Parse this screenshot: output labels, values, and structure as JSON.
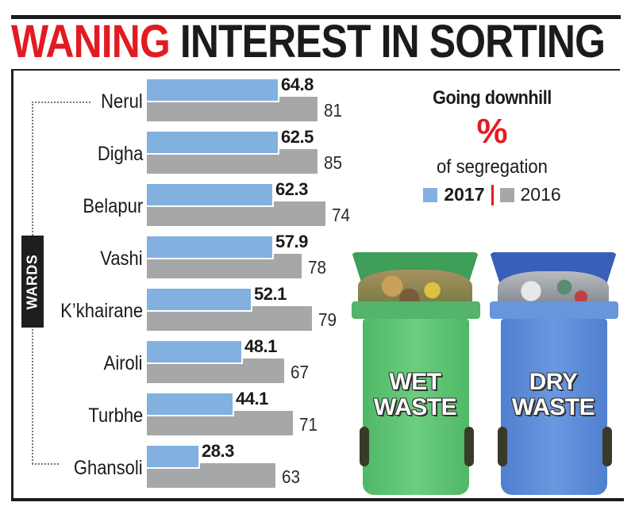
{
  "headline": {
    "highlight": "WANING",
    "rest": " INTEREST IN SORTING"
  },
  "axis_label": "WARDS",
  "legend": {
    "title": "Going downhill",
    "unit": "%",
    "subtitle": "of segregation",
    "series": [
      {
        "label": "2017",
        "color": "#82b0df"
      },
      {
        "label": "2016",
        "color": "#a6a7a9"
      }
    ],
    "separator_color": "#e21b23"
  },
  "colors": {
    "accent_red": "#e21b23",
    "bar_2017": "#82b0df",
    "bar_2016": "#a6a7a9",
    "wet_bin": "#5cc173",
    "dry_bin": "#5b8bd6"
  },
  "bins": [
    {
      "line1": "WET",
      "line2": "WASTE"
    },
    {
      "line1": "DRY",
      "line2": "WASTE"
    }
  ],
  "rows": [
    {
      "ward": "Nerul",
      "v2017": "64.8",
      "v2016": "81",
      "w2017": 167,
      "w2016": 215
    },
    {
      "ward": "Digha",
      "v2017": "62.5",
      "v2016": "85",
      "w2017": 167,
      "w2016": 215
    },
    {
      "ward": "Belapur",
      "v2017": "62.3",
      "v2016": "74",
      "w2017": 160,
      "w2016": 225
    },
    {
      "ward": "Vashi",
      "v2017": "57.9",
      "v2016": "78",
      "w2017": 160,
      "w2016": 195
    },
    {
      "ward": "K’khairane",
      "v2017": "52.1",
      "v2016": "79",
      "w2017": 133,
      "w2016": 208
    },
    {
      "ward": "Airoli",
      "v2017": "48.1",
      "v2016": "67",
      "w2017": 121,
      "w2016": 173
    },
    {
      "ward": "Turbhe",
      "v2017": "44.1",
      "v2016": "71",
      "w2017": 110,
      "w2016": 184
    },
    {
      "ward": "Ghansoli",
      "v2017": "28.3",
      "v2016": "63",
      "w2017": 67,
      "w2016": 162
    }
  ],
  "chart_data": {
    "type": "bar",
    "orientation": "horizontal",
    "title": "WANING INTEREST IN SORTING",
    "subtitle": "Going downhill — % of segregation",
    "xlabel": "% of segregation",
    "ylabel": "WARDS",
    "categories": [
      "Nerul",
      "Digha",
      "Belapur",
      "Vashi",
      "K’khairane",
      "Airoli",
      "Turbhe",
      "Ghansoli"
    ],
    "series": [
      {
        "name": "2017",
        "color": "#82b0df",
        "values": [
          64.8,
          62.5,
          62.3,
          57.9,
          52.1,
          48.1,
          44.1,
          28.3
        ]
      },
      {
        "name": "2016",
        "color": "#a6a7a9",
        "values": [
          81,
          85,
          74,
          78,
          79,
          67,
          71,
          63
        ]
      }
    ],
    "legend_position": "right",
    "grid": false,
    "data_labels": true,
    "annotations": [
      "WET WASTE",
      "DRY WASTE"
    ]
  }
}
